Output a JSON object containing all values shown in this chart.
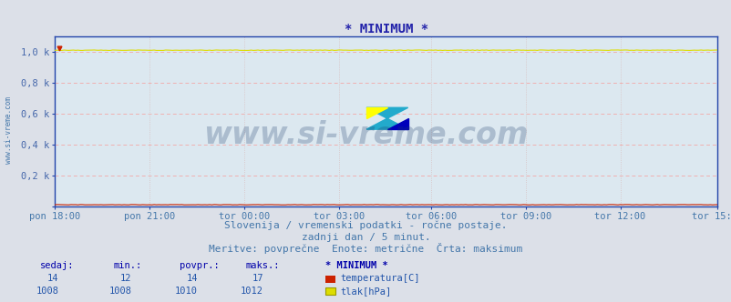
{
  "title": "* MINIMUM *",
  "title_color": "#2222aa",
  "title_fontsize": 10,
  "bg_color": "#dce0e8",
  "plot_bg_color": "#dce8f0",
  "grid_color_h": "#f0b0b0",
  "grid_color_v": "#d8c0c0",
  "ylabel_color": "#4466aa",
  "xlabel_color": "#4477aa",
  "watermark": "www.si-vreme.com",
  "watermark_color": "#1a3a6a",
  "watermark_alpha": 0.25,
  "watermark_fontsize": 24,
  "subtitle1": "Slovenija / vremenski podatki - ročne postaje.",
  "subtitle2": "zadnji dan / 5 minut.",
  "subtitle3": "Meritve: povprečne  Enote: metrične  Črta: maksimum",
  "subtitle_color": "#4477aa",
  "subtitle_fontsize": 8,
  "x_labels": [
    "pon 18:00",
    "pon 21:00",
    "tor 00:00",
    "tor 03:00",
    "tor 06:00",
    "tor 09:00",
    "tor 12:00",
    "tor 15:00"
  ],
  "x_ticks_norm": [
    0.0,
    0.143,
    0.286,
    0.429,
    0.571,
    0.714,
    0.857,
    1.0
  ],
  "n_points": 288,
  "ylim": [
    0,
    1100
  ],
  "yticks": [
    0,
    200,
    400,
    600,
    800,
    1000
  ],
  "yticklabels": [
    "",
    "0,2 k",
    "0,4 k",
    "0,6 k",
    "0,8 k",
    "1,0 k"
  ],
  "temp_value": 14,
  "temp_min": 12,
  "temp_avg": 14,
  "temp_max": 17,
  "pressure_value": 1008,
  "pressure_min": 1008,
  "pressure_avg": 1010,
  "pressure_max": 1012,
  "temp_color": "#cc2200",
  "pressure_color": "#dddd00",
  "spine_color": "#2244aa",
  "left_label": "www.si-vreme.com",
  "left_label_color": "#4477aa",
  "stats_header_color": "#0000aa",
  "stats_value_color": "#2255aa",
  "legend_label_color": "#2255aa",
  "legend_temp_color": "#cc2200",
  "legend_pressure_color": "#dddd00",
  "legend_pressure_border": "#999900"
}
